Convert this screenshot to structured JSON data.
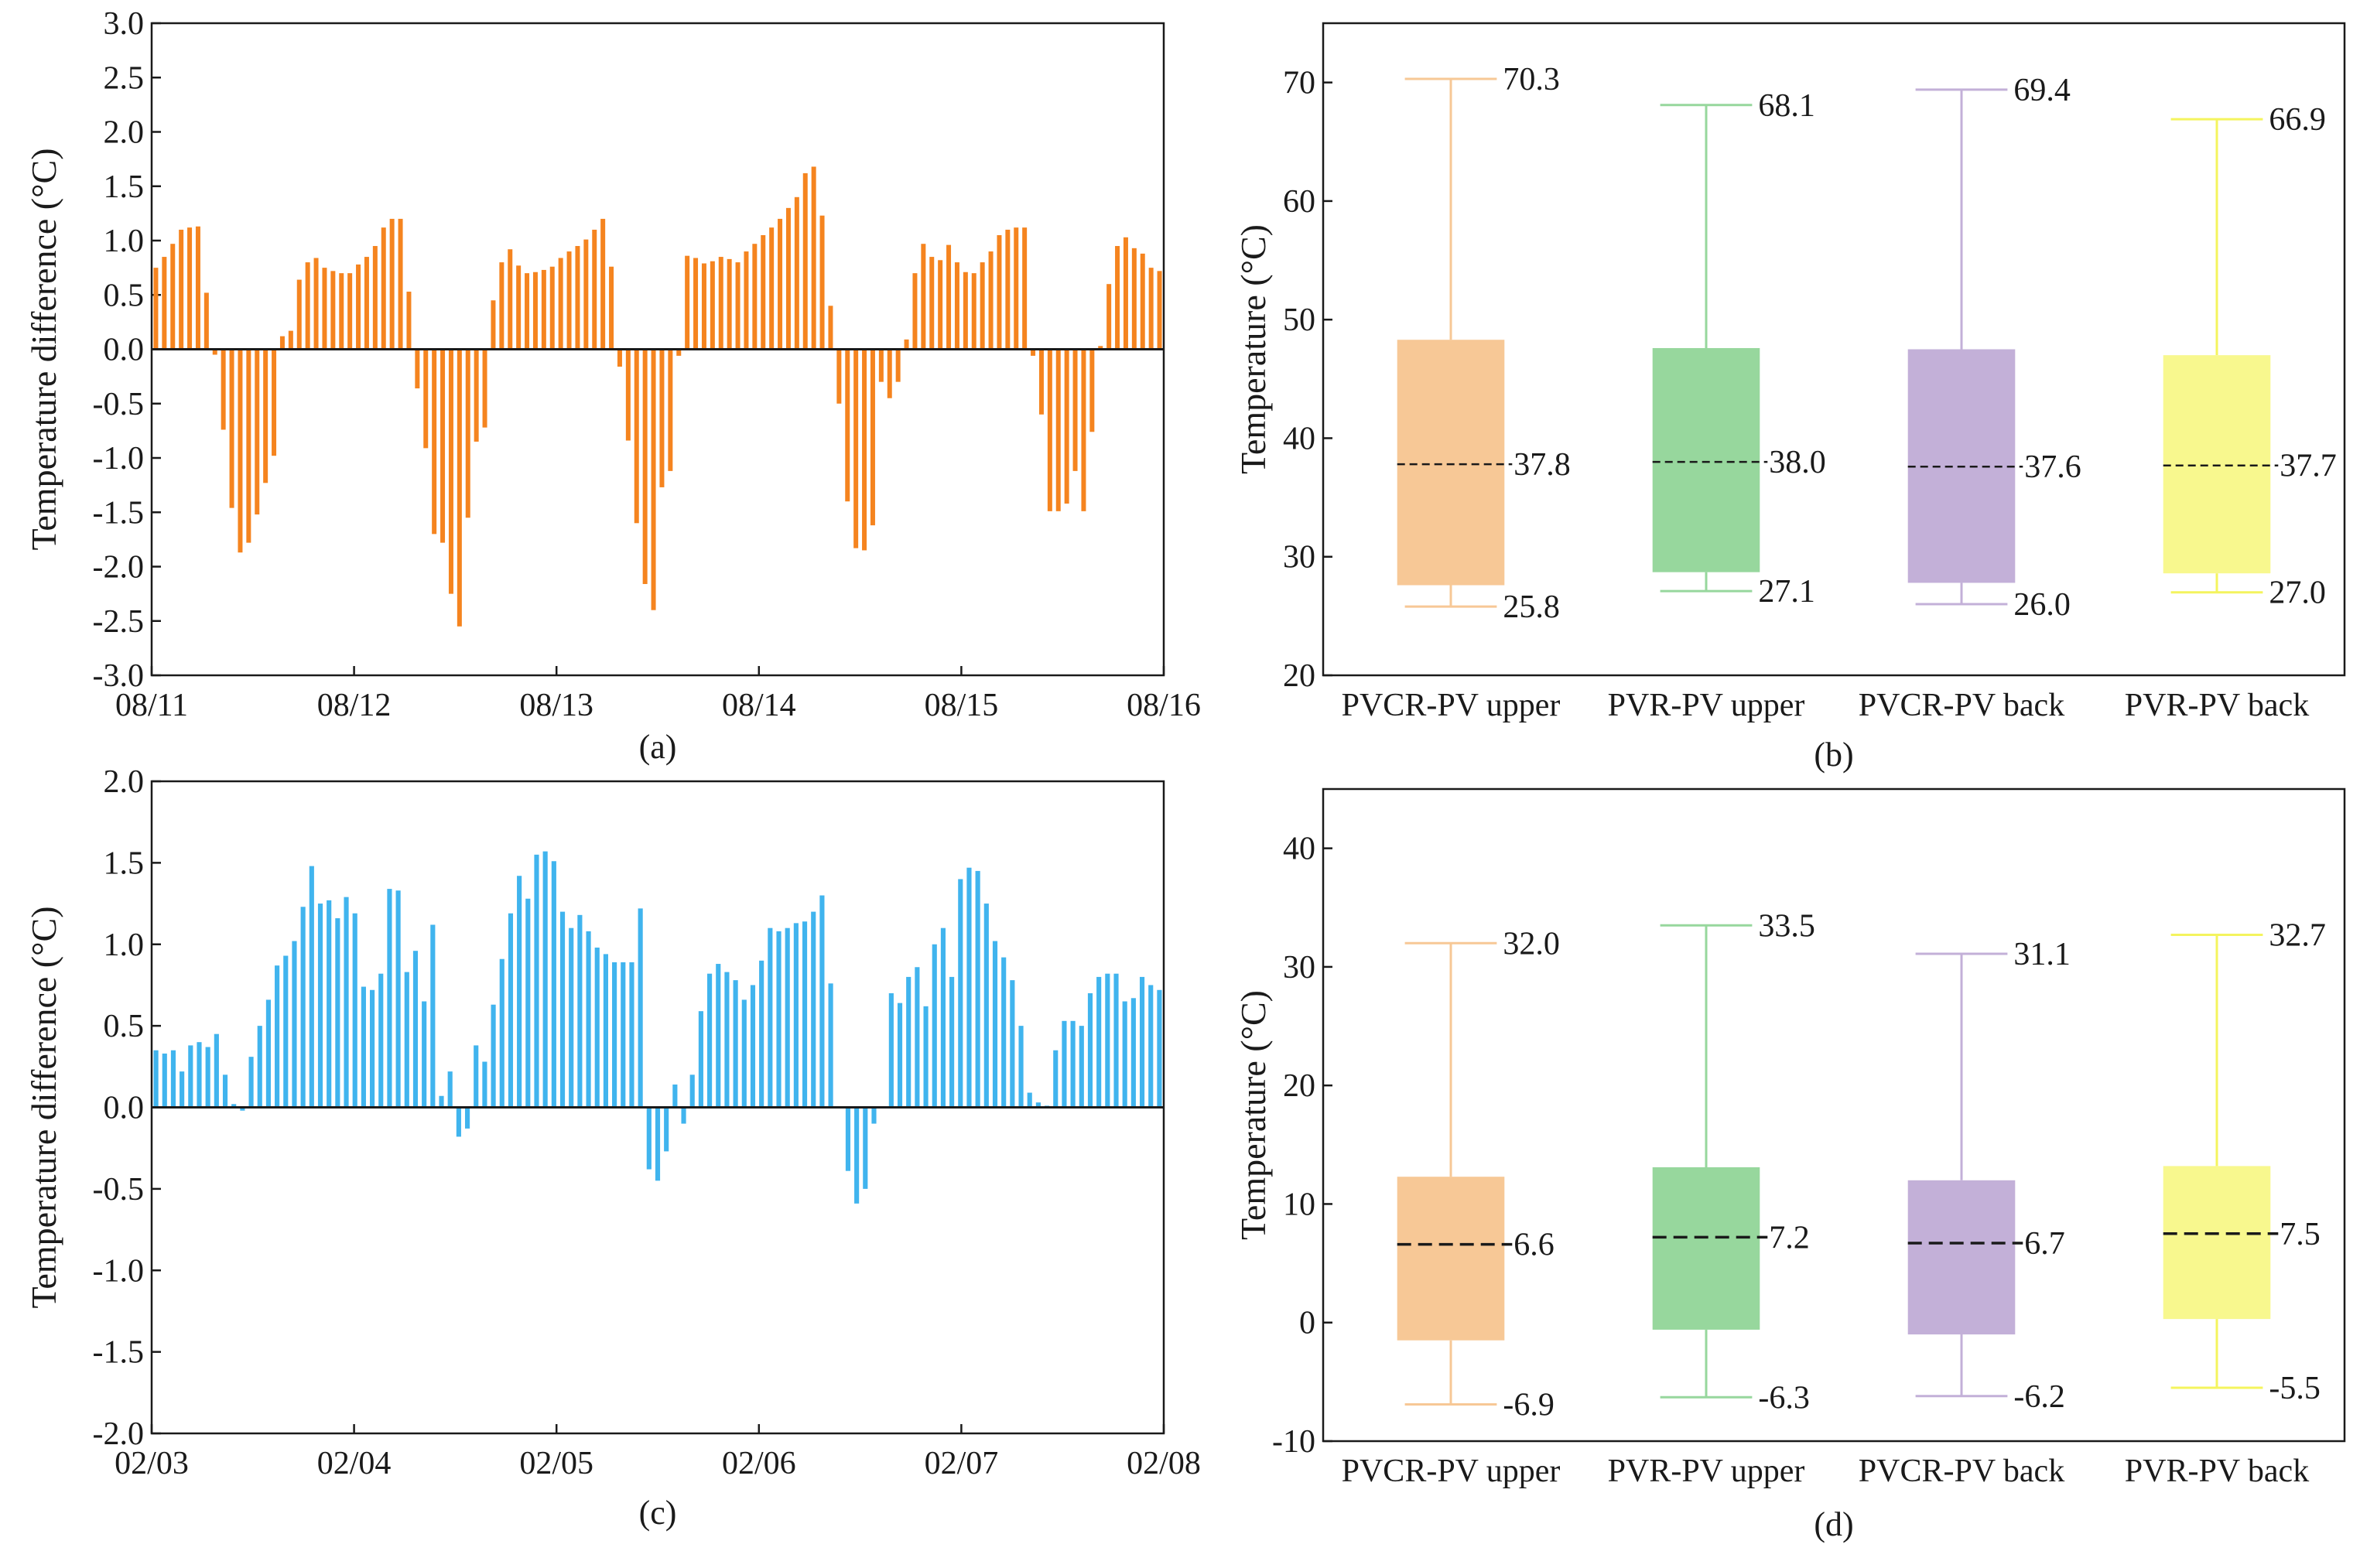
{
  "chart_data": [
    {
      "panel": "(a)",
      "type": "bar",
      "ylabel": "Temperature difference (°C)",
      "xlabel": "",
      "ylim": [
        -3.0,
        3.0
      ],
      "yticks": [
        "3.0",
        "2.5",
        "2.0",
        "1.5",
        "1.0",
        "0.5",
        "0.0",
        "-0.5",
        "-1.0",
        "-1.5",
        "-2.0",
        "-2.5",
        "-3.0"
      ],
      "x_tick_labels": [
        "08/11",
        "08/12",
        "08/13",
        "08/14",
        "08/15",
        "08/16"
      ],
      "color": "#f5841f",
      "values": [
        0.75,
        0.85,
        0.97,
        1.1,
        1.12,
        1.13,
        0.52,
        -0.05,
        -0.74,
        -1.46,
        -1.87,
        -1.78,
        -1.52,
        -1.23,
        -0.98,
        0.12,
        0.17,
        0.64,
        0.8,
        0.84,
        0.75,
        0.72,
        0.7,
        0.7,
        0.78,
        0.85,
        0.95,
        1.12,
        1.2,
        1.2,
        0.53,
        -0.36,
        -0.91,
        -1.7,
        -1.78,
        -2.25,
        -2.55,
        -1.55,
        -0.85,
        -0.72,
        0.45,
        0.8,
        0.92,
        0.77,
        0.7,
        0.71,
        0.73,
        0.76,
        0.84,
        0.9,
        0.95,
        1.01,
        1.1,
        1.2,
        0.76,
        -0.16,
        -0.84,
        -1.6,
        -2.16,
        -2.4,
        -1.27,
        -1.12,
        -0.06,
        0.86,
        0.84,
        0.79,
        0.81,
        0.85,
        0.83,
        0.8,
        0.9,
        0.97,
        1.05,
        1.12,
        1.2,
        1.3,
        1.4,
        1.62,
        1.68,
        1.23,
        0.4,
        -0.5,
        -1.4,
        -1.83,
        -1.85,
        -1.62,
        -0.3,
        -0.45,
        -0.3,
        0.09,
        0.7,
        0.97,
        0.85,
        0.82,
        0.96,
        0.8,
        0.71,
        0.7,
        0.8,
        0.9,
        1.05,
        1.1,
        1.12,
        1.12,
        -0.06,
        -0.6,
        -1.49,
        -1.49,
        -1.42,
        -1.12,
        -1.49,
        -0.76,
        0.03,
        0.6,
        0.95,
        1.03,
        0.93,
        0.88,
        0.75,
        0.72
      ]
    },
    {
      "panel": "(b)",
      "type": "box",
      "ylabel": "Temperature (°C)",
      "xlabel": "",
      "ylim": [
        20,
        75
      ],
      "yticks": [
        "70",
        "60",
        "50",
        "40",
        "30",
        "20"
      ],
      "categories": [
        "PVCR-PV upper",
        "PVR-PV upper",
        "PVCR-PV back",
        "PVR-PV back"
      ],
      "colors": [
        "#f7c896",
        "#97d79d",
        "#c3b0d8",
        "#f8f88e"
      ],
      "whisker_colors": [
        "#f7c896",
        "#97d79d",
        "#c3b0d8",
        "#f4f45e"
      ],
      "max": [
        70.3,
        68.1,
        69.4,
        66.9
      ],
      "q3": [
        48.3,
        47.6,
        47.5,
        47.0
      ],
      "mean": [
        37.8,
        38.0,
        37.6,
        37.7
      ],
      "q1": [
        27.6,
        28.7,
        27.8,
        28.6
      ],
      "min": [
        25.8,
        27.1,
        26.0,
        27.0
      ],
      "max_labels": [
        "70.3",
        "68.1",
        "69.4",
        "66.9"
      ],
      "mean_labels": [
        "37.8",
        "38.0",
        "37.6",
        "37.7"
      ],
      "min_labels": [
        "25.8",
        "27.1",
        "26.0",
        "27.0"
      ]
    },
    {
      "panel": "(c)",
      "type": "bar",
      "ylabel": "Temperature difference  (°C)",
      "xlabel": "",
      "ylim": [
        -2.0,
        2.0
      ],
      "yticks": [
        "2.0",
        "1.5",
        "1.0",
        "0.5",
        "0.0",
        "-0.5",
        "-1.0",
        "-1.5",
        "-2.0"
      ],
      "x_tick_labels": [
        "02/03",
        "02/04",
        "02/05",
        "02/06",
        "02/07",
        "02/08"
      ],
      "color": "#40b4ee",
      "values": [
        0.35,
        0.33,
        0.35,
        0.22,
        0.38,
        0.4,
        0.37,
        0.45,
        0.2,
        0.02,
        -0.02,
        0.31,
        0.5,
        0.66,
        0.87,
        0.93,
        1.02,
        1.23,
        1.48,
        1.25,
        1.27,
        1.16,
        1.29,
        1.19,
        0.74,
        0.72,
        0.82,
        1.34,
        1.33,
        0.83,
        0.96,
        0.65,
        1.12,
        0.07,
        0.22,
        -0.18,
        -0.13,
        0.38,
        0.28,
        0.63,
        0.91,
        1.19,
        1.42,
        1.28,
        1.55,
        1.57,
        1.51,
        1.2,
        1.1,
        1.18,
        1.08,
        0.98,
        0.94,
        0.89,
        0.89,
        0.89,
        1.22,
        -0.38,
        -0.45,
        -0.27,
        0.14,
        -0.1,
        0.2,
        0.59,
        0.82,
        0.88,
        0.83,
        0.78,
        0.66,
        0.75,
        0.9,
        1.1,
        1.08,
        1.1,
        1.13,
        1.14,
        1.2,
        1.3,
        0.76,
        0.0,
        -0.39,
        -0.59,
        -0.5,
        -0.1,
        0.0,
        0.7,
        0.64,
        0.8,
        0.86,
        0.62,
        1.0,
        1.1,
        0.8,
        1.4,
        1.47,
        1.45,
        1.25,
        1.02,
        0.92,
        0.78,
        0.5,
        0.09,
        0.03,
        0.01,
        0.35,
        0.53,
        0.53,
        0.5,
        0.7,
        0.8,
        0.82,
        0.82,
        0.65,
        0.67,
        0.8,
        0.75,
        0.72
      ]
    },
    {
      "panel": "(d)",
      "type": "box",
      "ylabel": "Temperature  (°C)",
      "xlabel": "",
      "ylim": [
        -10,
        45
      ],
      "yticks": [
        "40",
        "30",
        "20",
        "10",
        "0",
        "-10"
      ],
      "categories": [
        "PVCR-PV upper",
        "PVR-PV upper",
        "PVCR-PV back",
        "PVR-PV back"
      ],
      "colors": [
        "#f7c896",
        "#97d79d",
        "#c3b0d8",
        "#f8f88e"
      ],
      "whisker_colors": [
        "#f7c896",
        "#97d79d",
        "#c3b0d8",
        "#f4f45e"
      ],
      "max": [
        32.0,
        33.5,
        31.1,
        32.7
      ],
      "q3": [
        12.3,
        13.1,
        12.0,
        13.2
      ],
      "mean": [
        6.6,
        7.2,
        6.7,
        7.5
      ],
      "q1": [
        -1.5,
        -0.6,
        -1.0,
        0.3
      ],
      "min": [
        -6.9,
        -6.3,
        -6.2,
        -5.5
      ],
      "max_labels": [
        "32.0",
        "33.5",
        "31.1",
        "32.7"
      ],
      "mean_labels": [
        "6.6",
        "7.2",
        "6.7",
        "7.5"
      ],
      "min_labels": [
        "-6.9",
        "-6.3",
        "-6.2",
        "-5.5"
      ]
    }
  ]
}
